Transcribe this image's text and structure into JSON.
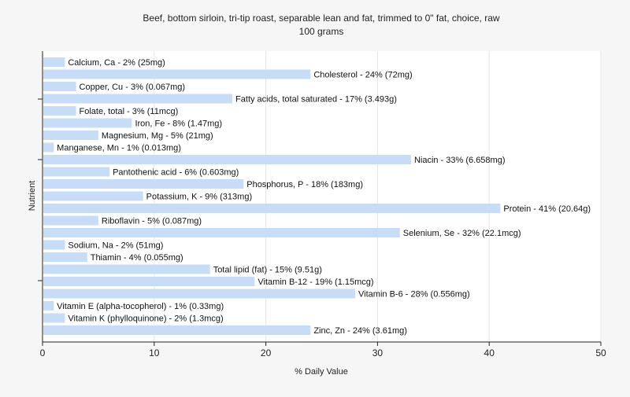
{
  "chart_data": {
    "type": "bar",
    "orientation": "horizontal",
    "title": "Beef, bottom sirloin, tri-tip roast, separable lean and fat, trimmed to 0\" fat, choice, raw",
    "subtitle": "100 grams",
    "xlabel": "% Daily Value",
    "ylabel": "Nutrient",
    "xlim": [
      0,
      50
    ],
    "xticks": [
      0,
      10,
      20,
      30,
      40,
      50
    ],
    "grid": true,
    "bar_color": "#c6dcf7",
    "categories": [
      "Calcium, Ca",
      "Cholesterol",
      "Copper, Cu",
      "Fatty acids, total saturated",
      "Folate, total",
      "Iron, Fe",
      "Magnesium, Mg",
      "Manganese, Mn",
      "Niacin",
      "Pantothenic acid",
      "Phosphorus, P",
      "Potassium, K",
      "Protein",
      "Riboflavin",
      "Selenium, Se",
      "Sodium, Na",
      "Thiamin",
      "Total lipid (fat)",
      "Vitamin B-12",
      "Vitamin B-6",
      "Vitamin E (alpha-tocopherol)",
      "Vitamin K (phylloquinone)",
      "Zinc, Zn"
    ],
    "values": [
      2,
      24,
      3,
      17,
      3,
      8,
      5,
      1,
      33,
      6,
      18,
      9,
      41,
      5,
      32,
      2,
      4,
      15,
      19,
      28,
      1,
      2,
      24
    ],
    "labels": [
      "Calcium, Ca - 2% (25mg)",
      "Cholesterol - 24% (72mg)",
      "Copper, Cu - 3% (0.067mg)",
      "Fatty acids, total saturated - 17% (3.493g)",
      "Folate, total - 3% (11mcg)",
      "Iron, Fe - 8% (1.47mg)",
      "Magnesium, Mg - 5% (21mg)",
      "Manganese, Mn - 1% (0.013mg)",
      "Niacin - 33% (6.658mg)",
      "Pantothenic acid - 6% (0.603mg)",
      "Phosphorus, P - 18% (183mg)",
      "Potassium, K - 9% (313mg)",
      "Protein - 41% (20.64g)",
      "Riboflavin - 5% (0.087mg)",
      "Selenium, Se - 32% (22.1mcg)",
      "Sodium, Na - 2% (51mg)",
      "Thiamin - 4% (0.055mg)",
      "Total lipid (fat) - 15% (9.51g)",
      "Vitamin B-12 - 19% (1.15mcg)",
      "Vitamin B-6 - 28% (0.556mg)",
      "Vitamin E (alpha-tocopherol) - 1% (0.33mg)",
      "Vitamin K (phylloquinone) - 2% (1.3mcg)",
      "Zinc, Zn - 24% (3.61mg)"
    ]
  }
}
